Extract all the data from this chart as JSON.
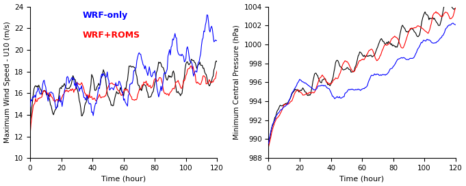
{
  "left_panel": {
    "ylabel": "Maximum Wind Speed - U10 (m/s)",
    "xlabel": "Time (hour)",
    "ylim": [
      10,
      24
    ],
    "xlim": [
      0,
      120
    ],
    "yticks": [
      10,
      12,
      14,
      16,
      18,
      20,
      22,
      24
    ],
    "xticks": [
      0,
      20,
      40,
      60,
      80,
      100,
      120
    ],
    "legend_labels": [
      "WRF-only",
      "WRF+ROMS"
    ],
    "legend_colors": [
      "#0000FF",
      "#FF0000"
    ]
  },
  "right_panel": {
    "ylabel": "Minimum Central Pressure (hPa)",
    "xlabel": "Time (hour)",
    "ylim": [
      988,
      1004
    ],
    "xlim": [
      0,
      120
    ],
    "yticks": [
      988,
      990,
      992,
      994,
      996,
      998,
      1000,
      1002,
      1004
    ],
    "xticks": [
      0,
      20,
      40,
      60,
      80,
      100,
      120
    ]
  },
  "colors": {
    "blue": "#0000FF",
    "red": "#FF0000",
    "black": "#000000"
  },
  "linewidth": 0.8,
  "figsize": [
    6.81,
    2.72
  ],
  "dpi": 100,
  "n_points": 241
}
